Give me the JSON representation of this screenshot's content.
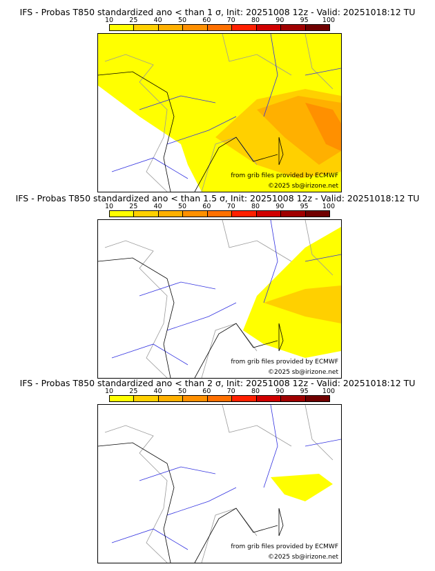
{
  "panels": [
    {
      "title": "IFS - Probas T850  standardized ano < than 1 σ, Init: 20251008 12z - Valid: 20251018:12 TU"
    },
    {
      "title": "IFS - Probas T850  standardized ano < than 1.5 σ, Init: 20251008 12z - Valid: 20251018:12 TU"
    },
    {
      "title": "IFS - Probas T850  standardized ano < than 2 σ, Init: 20251008 12z - Valid: 20251018:12 TU"
    }
  ],
  "colorbar": {
    "ticks": [
      "10",
      "25",
      "40",
      "50",
      "60",
      "70",
      "80",
      "90",
      "95",
      "100"
    ],
    "colors": [
      "#ffff00",
      "#ffd000",
      "#ffb000",
      "#ff9000",
      "#ff7000",
      "#ff2000",
      "#d00000",
      "#a00000",
      "#700000"
    ]
  },
  "credits": {
    "source": "from grib files provided by ECMWF",
    "copyright": "©2025 sb@irizone.net"
  }
}
